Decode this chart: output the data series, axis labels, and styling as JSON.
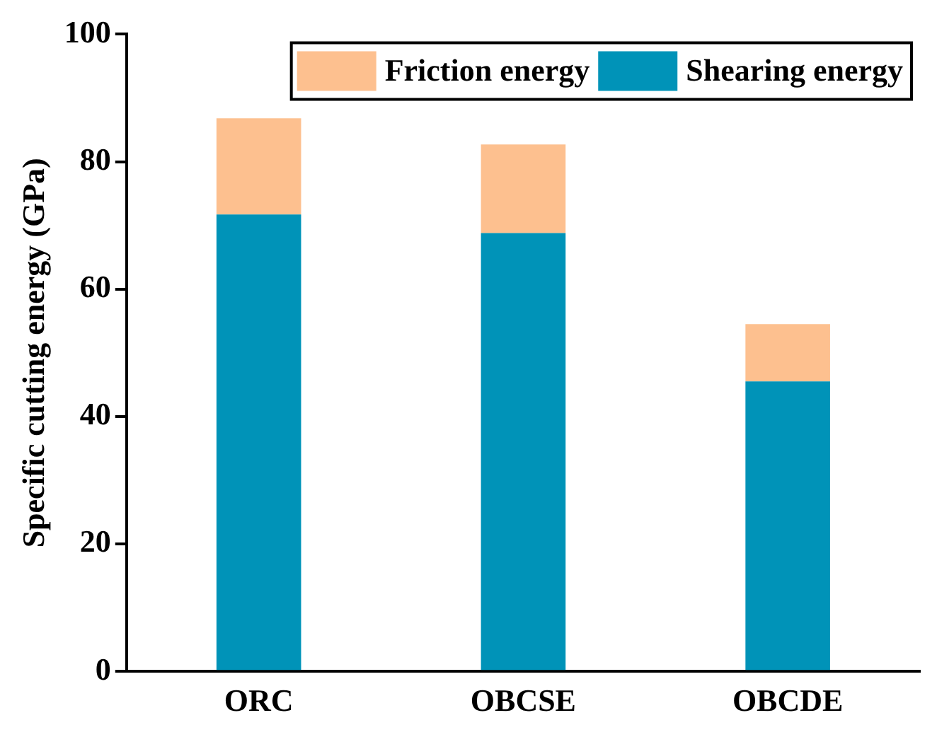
{
  "chart_data": {
    "type": "bar",
    "stacked": true,
    "ylabel": "Specific cutting energy (GPa)",
    "categories": [
      "ORC",
      "OBCSE",
      "OBCDE"
    ],
    "series": [
      {
        "name": "Shearing energy",
        "color": "#0093b8",
        "values": [
          71.7,
          68.8,
          45.5
        ]
      },
      {
        "name": "Friction energy",
        "color": "#fdc08f",
        "values": [
          15.1,
          13.9,
          9.0
        ]
      }
    ],
    "ylim": [
      0,
      100
    ],
    "yticks": [
      0,
      20,
      40,
      60,
      80,
      100
    ],
    "grid": false,
    "legend": "top right"
  }
}
